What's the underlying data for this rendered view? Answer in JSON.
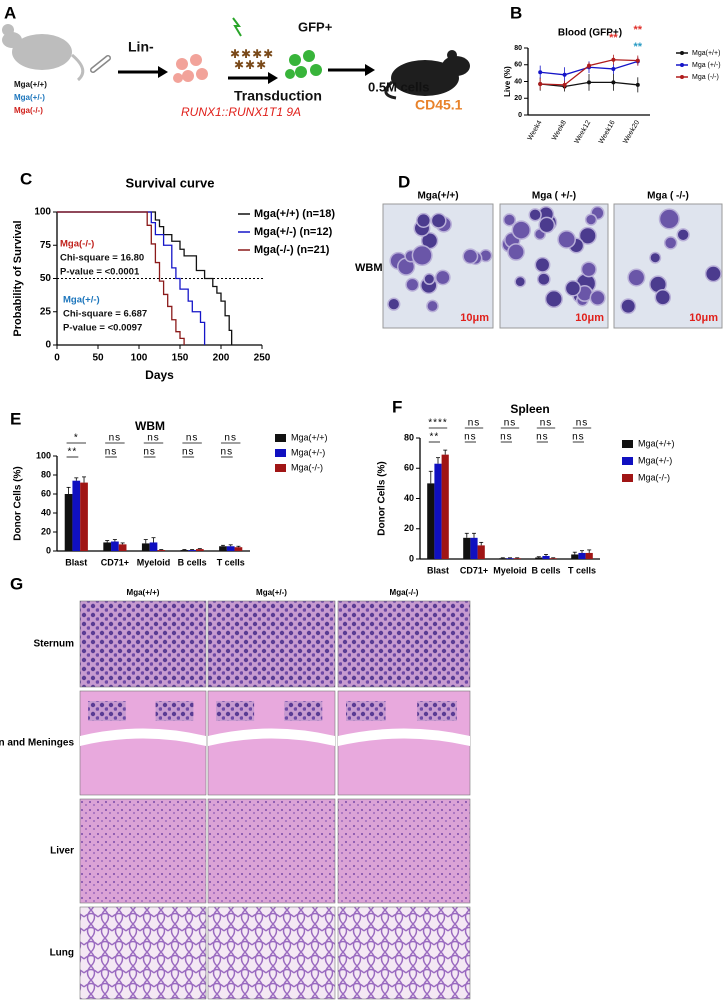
{
  "panel_letters": [
    "A",
    "B",
    "C",
    "D",
    "E",
    "F",
    "G"
  ],
  "schematic": {
    "genotypes": [
      {
        "text": "Mga(+/+)",
        "color": "#111111"
      },
      {
        "text": "Mga(+/-)",
        "color": "#1b75bc"
      },
      {
        "text": "Mga(-/-)",
        "color": "#d0201b"
      }
    ],
    "labels": [
      {
        "text": "Lin-",
        "color": "#111111"
      },
      {
        "text": "GFP+",
        "color": "#111111"
      },
      {
        "text": "Transduction",
        "color": "#111111"
      },
      {
        "text": "RUNX1::RUNX1T1 9A",
        "color": "#e0201b"
      },
      {
        "text": "0.5M cells",
        "color": "#111111"
      },
      {
        "text": "CD45.1",
        "color": "#e8822a"
      }
    ]
  },
  "chart_data": [
    {
      "type": "line",
      "title": "Blood (GFP+)",
      "y_label": "Live (%)",
      "categories": [
        "Week4",
        "Week8",
        "Week12",
        "Week16",
        "Week20"
      ],
      "ylim": [
        0,
        80
      ],
      "yticks": [
        0,
        20,
        40,
        60,
        80
      ],
      "legend": "right",
      "series": [
        {
          "name": "Mga(+/+)",
          "color": "#111111",
          "values": [
            37,
            34,
            39,
            39,
            36
          ],
          "errors": [
            8,
            6,
            10,
            10,
            9
          ]
        },
        {
          "name": "Mga (+/-)",
          "color": "#1515c8",
          "values": [
            51,
            48,
            57,
            55,
            64
          ],
          "errors": [
            8,
            9,
            7,
            6,
            5
          ]
        },
        {
          "name": "Mga (-/-)",
          "color": "#b01c1c",
          "values": [
            37,
            36,
            59,
            66,
            65
          ],
          "errors": [
            7,
            5,
            4,
            6,
            6
          ]
        }
      ],
      "annotations": [
        {
          "text": "**",
          "color": "#e0302a",
          "x": "Week16"
        },
        {
          "text": "**",
          "color": "#e0302a",
          "x": "Week20"
        },
        {
          "text": "**",
          "color": "#2a9bc4",
          "x": "Week20"
        }
      ]
    },
    {
      "type": "step",
      "title": "Survival curve",
      "x_label": "Days",
      "y_label": "Probability of Survival",
      "xlim": [
        0,
        250
      ],
      "xticks": [
        0,
        50,
        100,
        150,
        200,
        250
      ],
      "ylim": [
        0,
        100
      ],
      "yticks": [
        0,
        25,
        50,
        75,
        100
      ],
      "hline": 50,
      "legend": "upper right",
      "series": [
        {
          "name": "Mga(+/+) (n=18)",
          "color": "#111111",
          "x": [
            0,
            120,
            125,
            130,
            140,
            150,
            155,
            170,
            180,
            190,
            195,
            200,
            205,
            210,
            213
          ],
          "values": [
            100,
            94,
            89,
            83,
            78,
            72,
            67,
            56,
            50,
            44,
            39,
            33,
            22,
            11,
            0
          ]
        },
        {
          "name": "Mga(+/-) (n=12)",
          "color": "#1515c8",
          "x": [
            0,
            115,
            120,
            130,
            140,
            145,
            150,
            160,
            165,
            175,
            180
          ],
          "values": [
            100,
            92,
            83,
            75,
            58,
            50,
            42,
            33,
            25,
            17,
            0
          ]
        },
        {
          "name": "Mga(-/-) (n=21)",
          "color": "#8b1a1a",
          "x": [
            0,
            110,
            115,
            120,
            125,
            130,
            135,
            140,
            145,
            150,
            155
          ],
          "values": [
            100,
            90,
            76,
            62,
            48,
            38,
            29,
            19,
            10,
            5,
            0
          ]
        }
      ],
      "annotations": [
        {
          "text": "Mga(-/-)",
          "color": "#c0201b"
        },
        {
          "text": "Chi-square = 16.80",
          "color": "#111111"
        },
        {
          "text": "P-value = <0.0001",
          "color": "#111111"
        },
        {
          "text": "Mga(+/-)",
          "color": "#1b75bc"
        },
        {
          "text": "Chi-square = 6.687",
          "color": "#111111"
        },
        {
          "text": "P-value = <0.0097",
          "color": "#111111"
        }
      ]
    },
    {
      "type": "bar",
      "title": "WBM",
      "y_label": "Donor Cells (%)",
      "categories": [
        "Blast",
        "CD71+",
        "Myeloid",
        "B cells",
        "T cells"
      ],
      "ylim": [
        0,
        100
      ],
      "yticks": [
        0,
        20,
        40,
        60,
        80,
        100
      ],
      "legend": "right",
      "series": [
        {
          "name": "Mga(+/+)",
          "color": "#111111",
          "values": [
            60,
            9,
            8,
            1,
            5
          ],
          "errors": [
            7,
            2,
            4,
            0.5,
            1
          ]
        },
        {
          "name": "Mga(+/-)",
          "color": "#1010c0",
          "values": [
            74,
            10,
            9,
            1,
            5
          ],
          "errors": [
            3,
            2,
            5,
            0.5,
            1.5
          ]
        },
        {
          "name": "Mga(-/-)",
          "color": "#a01515",
          "values": [
            72,
            7,
            1,
            2,
            4
          ],
          "errors": [
            6,
            1.5,
            0.5,
            0.5,
            1
          ]
        }
      ],
      "significance": [
        [
          "*",
          "**"
        ],
        [
          "ns",
          "ns"
        ],
        [
          "ns",
          "ns"
        ],
        [
          "ns",
          "ns"
        ],
        [
          "ns",
          "ns"
        ]
      ]
    },
    {
      "type": "bar",
      "title": "Spleen",
      "y_label": "Donor Cells (%)",
      "categories": [
        "Blast",
        "CD71+",
        "Myeloid",
        "B cells",
        "T cells"
      ],
      "ylim": [
        0,
        80
      ],
      "yticks": [
        0,
        20,
        40,
        60,
        80
      ],
      "legend": "right",
      "series": [
        {
          "name": "Mga(+/+)",
          "color": "#111111",
          "values": [
            50,
            14,
            0.5,
            1,
            3
          ],
          "errors": [
            8,
            3,
            0.3,
            0.5,
            1.5
          ]
        },
        {
          "name": "Mga(+/-)",
          "color": "#1010c0",
          "values": [
            63,
            14,
            0.5,
            2,
            4
          ],
          "errors": [
            4,
            3,
            0.3,
            1,
            1.5
          ]
        },
        {
          "name": "Mga(-/-)",
          "color": "#a01515",
          "values": [
            69,
            9,
            0.5,
            0.5,
            4
          ],
          "errors": [
            3,
            2,
            0.3,
            0.3,
            2
          ]
        }
      ],
      "significance": [
        [
          "****",
          "**"
        ],
        [
          "ns",
          "ns"
        ],
        [
          "ns",
          "ns"
        ],
        [
          "ns",
          "ns"
        ],
        [
          "ns",
          "ns"
        ]
      ]
    }
  ],
  "micrographs": {
    "columns": [
      "Mga(+/+)",
      "Mga ( +/-)",
      "Mga ( -/-)"
    ],
    "row_label": "WBM",
    "scale_bars": [
      "10μm",
      "10μm",
      "10μm"
    ]
  },
  "histology": {
    "columns": [
      "Mga(+/+)",
      "Mga(+/-)",
      "Mga(-/-)"
    ],
    "rows": [
      "Sternum",
      "Brain and Meninges",
      "Liver",
      "Lung"
    ]
  }
}
